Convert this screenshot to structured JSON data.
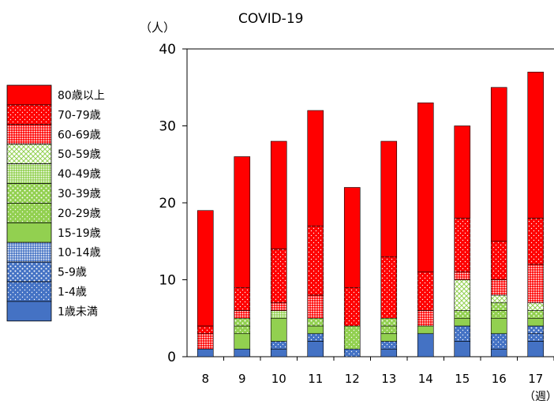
{
  "chart_data": {
    "type": "bar",
    "stacked": true,
    "title": "COVID-19",
    "ylabel": "（人）",
    "xlabel": "（週）",
    "ylim": [
      0,
      40
    ],
    "yticks": [
      0,
      10,
      20,
      30,
      40
    ],
    "grid": false,
    "legend_position": "left",
    "categories": [
      "8",
      "9",
      "10",
      "11",
      "12",
      "13",
      "14",
      "15",
      "16",
      "17"
    ],
    "series": [
      {
        "name": "1歳未満",
        "color": "#4472C4",
        "pattern": "solid",
        "values": [
          1,
          1,
          1,
          2,
          0,
          1,
          3,
          2,
          1,
          2
        ]
      },
      {
        "name": "1-4歳",
        "color": "#4472C4",
        "pattern": "dots-light",
        "values": [
          0,
          0,
          1,
          1,
          1,
          1,
          0,
          2,
          2,
          1
        ]
      },
      {
        "name": "5-9歳",
        "color": "#4472C4",
        "pattern": "dots-medium",
        "values": [
          0,
          0,
          0,
          0,
          0,
          0,
          0,
          0,
          0,
          1
        ]
      },
      {
        "name": "10-14歳",
        "color": "#4472C4",
        "pattern": "dots-dense",
        "values": [
          0,
          0,
          0,
          0,
          0,
          0,
          0,
          0,
          0,
          0
        ]
      },
      {
        "name": "15-19歳",
        "color": "#92D050",
        "pattern": "solid",
        "values": [
          0,
          2,
          3,
          1,
          0,
          1,
          1,
          1,
          2,
          1
        ]
      },
      {
        "name": "20-29歳",
        "color": "#92D050",
        "pattern": "dots-light",
        "values": [
          0,
          1,
          0,
          0,
          3,
          1,
          0,
          0,
          1,
          0
        ]
      },
      {
        "name": "30-39歳",
        "color": "#92D050",
        "pattern": "dots-medium",
        "values": [
          0,
          1,
          0,
          1,
          0,
          1,
          0,
          1,
          1,
          1
        ]
      },
      {
        "name": "40-49歳",
        "color": "#92D050",
        "pattern": "dots-dense",
        "values": [
          0,
          0,
          1,
          0,
          0,
          0,
          0,
          0,
          0,
          0
        ]
      },
      {
        "name": "50-59歳",
        "color": "#92D050",
        "pattern": "cross",
        "values": [
          0,
          0,
          0,
          0,
          0,
          0,
          0,
          4,
          1,
          1
        ]
      },
      {
        "name": "60-69歳",
        "color": "#FF0000",
        "pattern": "dots-dense",
        "values": [
          2,
          1,
          1,
          3,
          0,
          0,
          2,
          1,
          2,
          5
        ]
      },
      {
        "name": "70-79歳",
        "color": "#FF0000",
        "pattern": "dots-light",
        "values": [
          1,
          3,
          7,
          9,
          5,
          8,
          5,
          7,
          5,
          6
        ]
      },
      {
        "name": "80歳以上",
        "color": "#FF0000",
        "pattern": "solid",
        "values": [
          15,
          17,
          14,
          15,
          13,
          15,
          22,
          12,
          20,
          19
        ]
      }
    ]
  }
}
